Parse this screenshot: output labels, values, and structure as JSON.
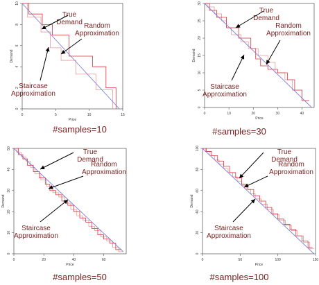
{
  "chart_data": [
    {
      "type": "line",
      "caption": "#samples=10",
      "xlabel": "Price",
      "ylabel": "Demand",
      "xlim": [
        0,
        15
      ],
      "ylim": [
        0,
        10
      ],
      "xticks": [
        "0",
        "5",
        "10",
        "15"
      ],
      "yticks": [
        "0",
        "2",
        "4",
        "6",
        "8",
        "10"
      ],
      "colors": {
        "true_demand": "#7b7fd9",
        "random": "#d9343b",
        "staircase": "#e59a9a"
      },
      "series": [
        {
          "role": "true_demand",
          "x": [
            0,
            14.5
          ],
          "y": [
            10,
            0
          ]
        },
        {
          "role": "random",
          "x": [
            0,
            1,
            1,
            3,
            3,
            4.5,
            4.5,
            7,
            7,
            10.5,
            10.5,
            12.5,
            12.5,
            14,
            14
          ],
          "y": [
            10,
            10,
            9,
            9,
            8,
            8,
            7,
            7,
            5,
            5,
            4,
            4,
            2,
            2,
            0
          ]
        },
        {
          "role": "staircase",
          "x": [
            0,
            0.8,
            0.8,
            2.8,
            2.8,
            4.2,
            4.2,
            5.8,
            5.8,
            8,
            8,
            11,
            11,
            13.5,
            13.5
          ],
          "y": [
            10,
            10,
            8.7,
            8.7,
            7.3,
            7.3,
            5.8,
            5.8,
            4.6,
            4.6,
            3.3,
            3.3,
            1.8,
            1.8,
            0
          ]
        }
      ],
      "annotations": [
        "True Demand",
        "Random Approximation",
        "Staircase Approximation"
      ]
    },
    {
      "type": "line",
      "caption": "#samples=30",
      "xlabel": "Price",
      "ylabel": "Demand",
      "xlim": [
        0,
        45
      ],
      "ylim": [
        0,
        30
      ],
      "xticks": [
        "0",
        "10",
        "20",
        "30",
        "40"
      ],
      "yticks": [
        "0",
        "5",
        "10",
        "15",
        "20",
        "25",
        "30"
      ],
      "colors": {
        "true_demand": "#7b7fd9",
        "random": "#d9343b",
        "staircase": "#e59a9a"
      },
      "series": [
        {
          "role": "true_demand",
          "x": [
            0,
            44
          ],
          "y": [
            30,
            0
          ]
        },
        {
          "role": "random",
          "x": [
            0,
            2,
            2,
            5,
            5,
            9,
            9,
            14,
            14,
            19,
            19,
            21,
            21,
            23,
            23,
            26,
            26,
            30,
            30,
            34,
            34,
            37,
            37,
            40,
            40,
            43
          ],
          "y": [
            30,
            30,
            28,
            28,
            26,
            26,
            23,
            23,
            20,
            20,
            17,
            17,
            14,
            14,
            12,
            12,
            11,
            11,
            10,
            10,
            8,
            8,
            5,
            5,
            2,
            2
          ]
        },
        {
          "role": "staircase",
          "x": [
            0,
            1,
            1,
            4,
            4,
            7,
            7,
            9,
            9,
            11,
            11,
            15,
            15,
            18,
            18,
            22,
            22,
            26,
            26,
            29,
            29,
            33,
            33,
            36,
            36,
            40,
            40,
            43
          ],
          "y": [
            30,
            30,
            29,
            29,
            27,
            27,
            25,
            25,
            23,
            23,
            21,
            21,
            19,
            19,
            17,
            17,
            15,
            15,
            13,
            13,
            10,
            10,
            8,
            8,
            5,
            5,
            2,
            2
          ]
        }
      ],
      "annotations": [
        "True Demand",
        "Random Approximation",
        "Staircase Approximation"
      ]
    },
    {
      "type": "line",
      "caption": "#samples=50",
      "xlabel": "Price",
      "ylabel": "Demand",
      "xlim": [
        0,
        75
      ],
      "ylim": [
        0,
        50
      ],
      "xticks": [
        "0",
        "20",
        "40",
        "60"
      ],
      "yticks": [
        "0",
        "10",
        "20",
        "30",
        "40",
        "50"
      ],
      "colors": {
        "true_demand": "#7b7fd9",
        "random": "#d9343b",
        "staircase": "#e59a9a"
      },
      "series": [
        {
          "role": "true_demand",
          "x": [
            0,
            73
          ],
          "y": [
            50,
            1
          ]
        },
        {
          "role": "random",
          "x": [
            0,
            3,
            3,
            6,
            6,
            9,
            9,
            13,
            13,
            17,
            17,
            21,
            21,
            24,
            24,
            28,
            28,
            32,
            32,
            36,
            36,
            40,
            40,
            44,
            44,
            48,
            48,
            52,
            52,
            56,
            56,
            60,
            60,
            64,
            64,
            68,
            68,
            72
          ],
          "y": [
            50,
            50,
            47,
            47,
            45,
            45,
            42,
            42,
            39,
            39,
            36,
            36,
            33,
            33,
            30,
            30,
            28,
            28,
            25,
            25,
            23,
            23,
            20,
            20,
            17,
            17,
            15,
            15,
            12,
            12,
            9,
            9,
            7,
            7,
            5,
            5,
            2,
            2
          ]
        },
        {
          "role": "staircase",
          "x": [
            0,
            2,
            2,
            5,
            5,
            8,
            8,
            11,
            11,
            14,
            14,
            18,
            18,
            22,
            22,
            26,
            26,
            30,
            30,
            34,
            34,
            38,
            38,
            42,
            42,
            46,
            46,
            50,
            50,
            54,
            54,
            58,
            58,
            62,
            62,
            66,
            66,
            70,
            70,
            73
          ],
          "y": [
            50,
            50,
            48,
            48,
            46,
            46,
            44,
            44,
            41,
            41,
            38,
            38,
            35,
            35,
            32,
            32,
            29,
            29,
            27,
            27,
            24,
            24,
            21,
            21,
            18,
            18,
            16,
            16,
            13,
            13,
            11,
            11,
            8,
            8,
            6,
            6,
            3,
            3,
            1,
            1
          ]
        }
      ],
      "annotations": [
        "True Demand",
        "Random Approximation",
        "Staircase Approximation"
      ]
    },
    {
      "type": "line",
      "caption": "#samples=100",
      "xlabel": "Price",
      "ylabel": "Demand",
      "xlim": [
        0,
        150
      ],
      "ylim": [
        0,
        100
      ],
      "xticks": [
        "0",
        "50",
        "100",
        "150"
      ],
      "yticks": [
        "0",
        "20",
        "40",
        "60",
        "80",
        "100"
      ],
      "colors": {
        "true_demand": "#7b7fd9",
        "random": "#d9343b",
        "staircase": "#e59a9a"
      },
      "series": [
        {
          "role": "true_demand",
          "x": [
            0,
            148
          ],
          "y": [
            100,
            0
          ]
        },
        {
          "role": "random",
          "x": [
            0,
            5,
            5,
            12,
            12,
            20,
            20,
            28,
            28,
            36,
            36,
            44,
            44,
            52,
            52,
            60,
            60,
            68,
            68,
            76,
            76,
            84,
            84,
            92,
            92,
            100,
            100,
            108,
            108,
            116,
            116,
            124,
            124,
            132,
            132,
            140,
            140,
            146
          ],
          "y": [
            100,
            100,
            97,
            97,
            93,
            93,
            88,
            88,
            83,
            83,
            77,
            77,
            72,
            72,
            66,
            66,
            61,
            61,
            55,
            55,
            50,
            50,
            44,
            44,
            38,
            38,
            33,
            33,
            28,
            28,
            23,
            23,
            17,
            17,
            12,
            12,
            6,
            6
          ]
        },
        {
          "role": "staircase",
          "x": [
            0,
            4,
            4,
            10,
            10,
            16,
            16,
            22,
            22,
            28,
            28,
            34,
            34,
            40,
            40,
            46,
            46,
            52,
            52,
            58,
            58,
            64,
            64,
            70,
            70,
            78,
            78,
            86,
            86,
            94,
            94,
            102,
            102,
            110,
            110,
            118,
            118,
            126,
            126,
            134,
            134,
            142,
            142,
            148
          ],
          "y": [
            100,
            100,
            97,
            97,
            93,
            93,
            89,
            89,
            85,
            85,
            81,
            81,
            77,
            77,
            73,
            73,
            69,
            69,
            65,
            65,
            61,
            61,
            57,
            57,
            52,
            52,
            47,
            47,
            42,
            42,
            37,
            37,
            32,
            32,
            27,
            27,
            22,
            22,
            17,
            17,
            11,
            11,
            5,
            5
          ]
        }
      ],
      "annotations": [
        "True Demand",
        "Random Approximation",
        "Staircase Approximation"
      ]
    }
  ]
}
